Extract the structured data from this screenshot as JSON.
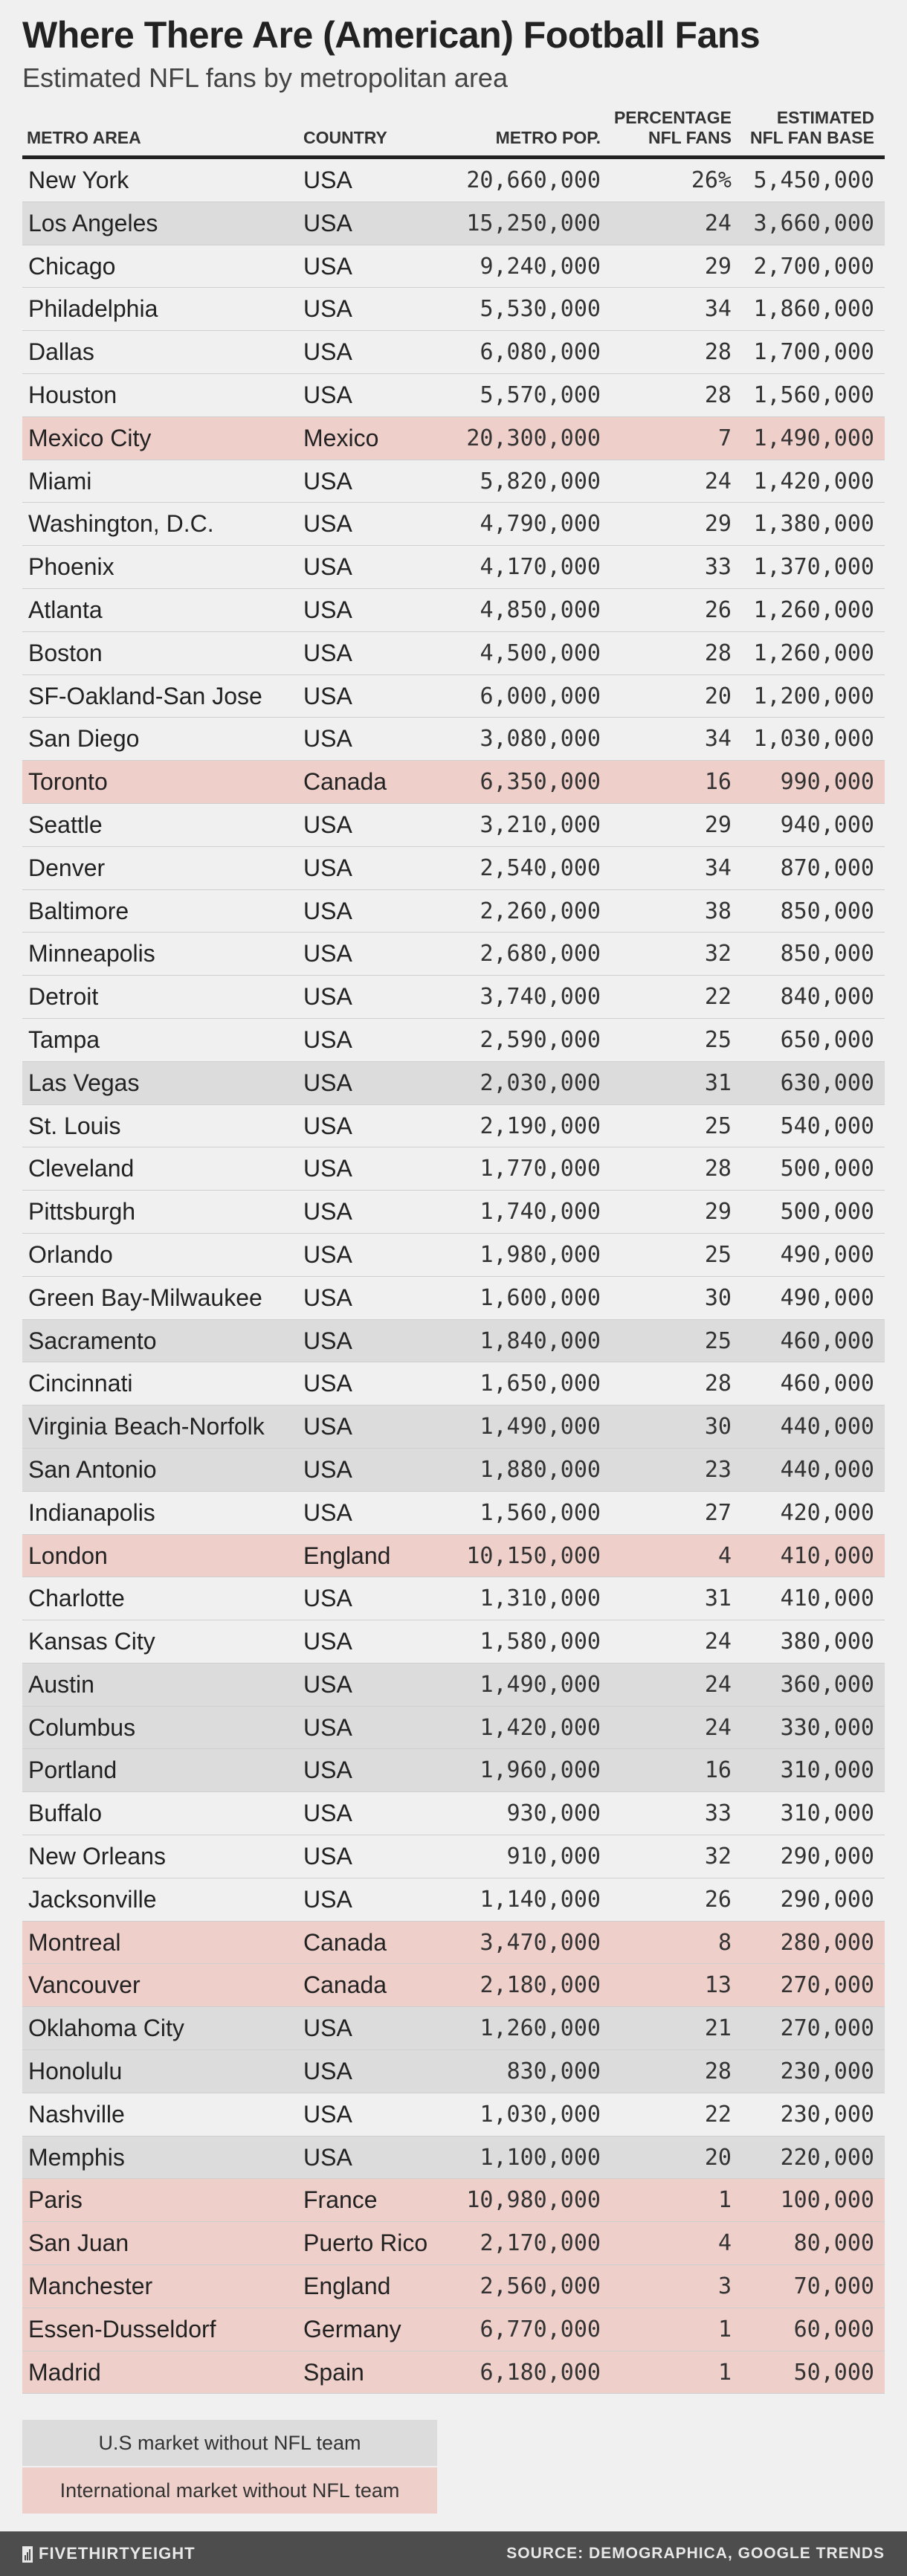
{
  "chart_data": {
    "type": "table",
    "title": "Where There Are (American) Football Fans",
    "subtitle": "Estimated NFL fans by metropolitan area",
    "columns": [
      "METRO AREA",
      "COUNTRY",
      "METRO POP.",
      "PERCENTAGE NFL FANS",
      "ESTIMATED NFL FAN BASE"
    ],
    "column_headers": {
      "metro": "METRO AREA",
      "country": "COUNTRY",
      "pop": "METRO POP.",
      "pct_line1": "PERCENTAGE",
      "pct_line2": "NFL FANS",
      "base_line1": "ESTIMATED",
      "base_line2": "NFL FAN BASE"
    },
    "rows": [
      {
        "metro": "New York",
        "country": "USA",
        "pop": "20,660,000",
        "pct": "26%",
        "base": "5,450,000",
        "status": "none"
      },
      {
        "metro": "Los Angeles",
        "country": "USA",
        "pop": "15,250,000",
        "pct": "24",
        "base": "3,660,000",
        "status": "us"
      },
      {
        "metro": "Chicago",
        "country": "USA",
        "pop": "9,240,000",
        "pct": "29",
        "base": "2,700,000",
        "status": "none"
      },
      {
        "metro": "Philadelphia",
        "country": "USA",
        "pop": "5,530,000",
        "pct": "34",
        "base": "1,860,000",
        "status": "none"
      },
      {
        "metro": "Dallas",
        "country": "USA",
        "pop": "6,080,000",
        "pct": "28",
        "base": "1,700,000",
        "status": "none"
      },
      {
        "metro": "Houston",
        "country": "USA",
        "pop": "5,570,000",
        "pct": "28",
        "base": "1,560,000",
        "status": "none"
      },
      {
        "metro": "Mexico City",
        "country": "Mexico",
        "pop": "20,300,000",
        "pct": "7",
        "base": "1,490,000",
        "status": "intl"
      },
      {
        "metro": "Miami",
        "country": "USA",
        "pop": "5,820,000",
        "pct": "24",
        "base": "1,420,000",
        "status": "none"
      },
      {
        "metro": "Washington, D.C.",
        "country": "USA",
        "pop": "4,790,000",
        "pct": "29",
        "base": "1,380,000",
        "status": "none"
      },
      {
        "metro": "Phoenix",
        "country": "USA",
        "pop": "4,170,000",
        "pct": "33",
        "base": "1,370,000",
        "status": "none"
      },
      {
        "metro": "Atlanta",
        "country": "USA",
        "pop": "4,850,000",
        "pct": "26",
        "base": "1,260,000",
        "status": "none"
      },
      {
        "metro": "Boston",
        "country": "USA",
        "pop": "4,500,000",
        "pct": "28",
        "base": "1,260,000",
        "status": "none"
      },
      {
        "metro": "SF-Oakland-San Jose",
        "country": "USA",
        "pop": "6,000,000",
        "pct": "20",
        "base": "1,200,000",
        "status": "none"
      },
      {
        "metro": "San Diego",
        "country": "USA",
        "pop": "3,080,000",
        "pct": "34",
        "base": "1,030,000",
        "status": "none"
      },
      {
        "metro": "Toronto",
        "country": "Canada",
        "pop": "6,350,000",
        "pct": "16",
        "base": "990,000",
        "status": "intl"
      },
      {
        "metro": "Seattle",
        "country": "USA",
        "pop": "3,210,000",
        "pct": "29",
        "base": "940,000",
        "status": "none"
      },
      {
        "metro": "Denver",
        "country": "USA",
        "pop": "2,540,000",
        "pct": "34",
        "base": "870,000",
        "status": "none"
      },
      {
        "metro": "Baltimore",
        "country": "USA",
        "pop": "2,260,000",
        "pct": "38",
        "base": "850,000",
        "status": "none"
      },
      {
        "metro": "Minneapolis",
        "country": "USA",
        "pop": "2,680,000",
        "pct": "32",
        "base": "850,000",
        "status": "none"
      },
      {
        "metro": "Detroit",
        "country": "USA",
        "pop": "3,740,000",
        "pct": "22",
        "base": "840,000",
        "status": "none"
      },
      {
        "metro": "Tampa",
        "country": "USA",
        "pop": "2,590,000",
        "pct": "25",
        "base": "650,000",
        "status": "none"
      },
      {
        "metro": "Las Vegas",
        "country": "USA",
        "pop": "2,030,000",
        "pct": "31",
        "base": "630,000",
        "status": "us"
      },
      {
        "metro": "St. Louis",
        "country": "USA",
        "pop": "2,190,000",
        "pct": "25",
        "base": "540,000",
        "status": "none"
      },
      {
        "metro": "Cleveland",
        "country": "USA",
        "pop": "1,770,000",
        "pct": "28",
        "base": "500,000",
        "status": "none"
      },
      {
        "metro": "Pittsburgh",
        "country": "USA",
        "pop": "1,740,000",
        "pct": "29",
        "base": "500,000",
        "status": "none"
      },
      {
        "metro": "Orlando",
        "country": "USA",
        "pop": "1,980,000",
        "pct": "25",
        "base": "490,000",
        "status": "none"
      },
      {
        "metro": "Green Bay-Milwaukee",
        "country": "USA",
        "pop": "1,600,000",
        "pct": "30",
        "base": "490,000",
        "status": "none"
      },
      {
        "metro": "Sacramento",
        "country": "USA",
        "pop": "1,840,000",
        "pct": "25",
        "base": "460,000",
        "status": "us"
      },
      {
        "metro": "Cincinnati",
        "country": "USA",
        "pop": "1,650,000",
        "pct": "28",
        "base": "460,000",
        "status": "none"
      },
      {
        "metro": "Virginia Beach-Norfolk",
        "country": "USA",
        "pop": "1,490,000",
        "pct": "30",
        "base": "440,000",
        "status": "us"
      },
      {
        "metro": "San Antonio",
        "country": "USA",
        "pop": "1,880,000",
        "pct": "23",
        "base": "440,000",
        "status": "us"
      },
      {
        "metro": "Indianapolis",
        "country": "USA",
        "pop": "1,560,000",
        "pct": "27",
        "base": "420,000",
        "status": "none"
      },
      {
        "metro": "London",
        "country": "England",
        "pop": "10,150,000",
        "pct": "4",
        "base": "410,000",
        "status": "intl"
      },
      {
        "metro": "Charlotte",
        "country": "USA",
        "pop": "1,310,000",
        "pct": "31",
        "base": "410,000",
        "status": "none"
      },
      {
        "metro": "Kansas City",
        "country": "USA",
        "pop": "1,580,000",
        "pct": "24",
        "base": "380,000",
        "status": "none"
      },
      {
        "metro": "Austin",
        "country": "USA",
        "pop": "1,490,000",
        "pct": "24",
        "base": "360,000",
        "status": "us"
      },
      {
        "metro": "Columbus",
        "country": "USA",
        "pop": "1,420,000",
        "pct": "24",
        "base": "330,000",
        "status": "us"
      },
      {
        "metro": "Portland",
        "country": "USA",
        "pop": "1,960,000",
        "pct": "16",
        "base": "310,000",
        "status": "us"
      },
      {
        "metro": "Buffalo",
        "country": "USA",
        "pop": "930,000",
        "pct": "33",
        "base": "310,000",
        "status": "none"
      },
      {
        "metro": "New Orleans",
        "country": "USA",
        "pop": "910,000",
        "pct": "32",
        "base": "290,000",
        "status": "none"
      },
      {
        "metro": "Jacksonville",
        "country": "USA",
        "pop": "1,140,000",
        "pct": "26",
        "base": "290,000",
        "status": "none"
      },
      {
        "metro": "Montreal",
        "country": "Canada",
        "pop": "3,470,000",
        "pct": "8",
        "base": "280,000",
        "status": "intl"
      },
      {
        "metro": "Vancouver",
        "country": "Canada",
        "pop": "2,180,000",
        "pct": "13",
        "base": "270,000",
        "status": "intl"
      },
      {
        "metro": "Oklahoma City",
        "country": "USA",
        "pop": "1,260,000",
        "pct": "21",
        "base": "270,000",
        "status": "us"
      },
      {
        "metro": "Honolulu",
        "country": "USA",
        "pop": "830,000",
        "pct": "28",
        "base": "230,000",
        "status": "us"
      },
      {
        "metro": "Nashville",
        "country": "USA",
        "pop": "1,030,000",
        "pct": "22",
        "base": "230,000",
        "status": "none"
      },
      {
        "metro": "Memphis",
        "country": "USA",
        "pop": "1,100,000",
        "pct": "20",
        "base": "220,000",
        "status": "us"
      },
      {
        "metro": "Paris",
        "country": "France",
        "pop": "10,980,000",
        "pct": "1",
        "base": "100,000",
        "status": "intl"
      },
      {
        "metro": "San Juan",
        "country": "Puerto Rico",
        "pop": "2,170,000",
        "pct": "4",
        "base": "80,000",
        "status": "intl"
      },
      {
        "metro": "Manchester",
        "country": "England",
        "pop": "2,560,000",
        "pct": "3",
        "base": "70,000",
        "status": "intl"
      },
      {
        "metro": "Essen-Dusseldorf",
        "country": "Germany",
        "pop": "6,770,000",
        "pct": "1",
        "base": "60,000",
        "status": "intl"
      },
      {
        "metro": "Madrid",
        "country": "Spain",
        "pop": "6,180,000",
        "pct": "1",
        "base": "50,000",
        "status": "intl"
      }
    ],
    "legend": {
      "us": "U.S market without NFL team",
      "intl": "International market without NFL team"
    }
  },
  "colors": {
    "background": "#f0f0f0",
    "us_market_no_team": "#dcdcdc",
    "international_no_team": "#efcfca",
    "footer": "#4d4d4d"
  },
  "footer": {
    "brand": "FIVETHIRTYEIGHT",
    "brand_icon": "fivethirtyeight-logo-icon",
    "source": "SOURCE: DEMOGRAPHICA, GOOGLE TRENDS"
  }
}
